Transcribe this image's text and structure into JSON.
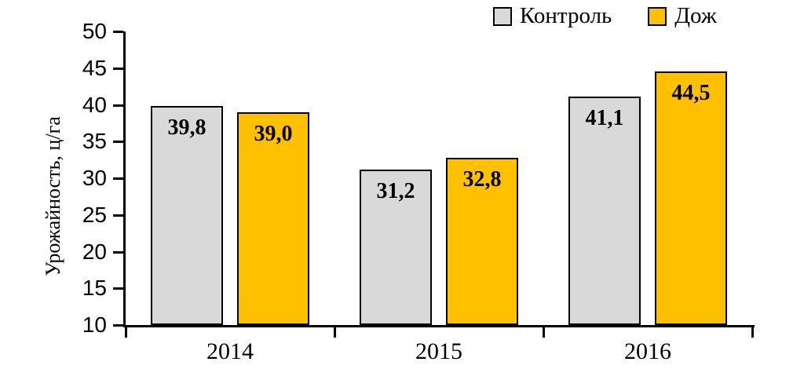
{
  "chart_data": {
    "type": "bar",
    "title": "",
    "categories": [
      "2014",
      "2015",
      "2016"
    ],
    "series": [
      {
        "name": "Контроль",
        "color": "#D9D9D9",
        "values": [
          39.8,
          31.2,
          41.1
        ],
        "labels": [
          "39,8",
          "31,2",
          "41,1"
        ]
      },
      {
        "name": "Дож",
        "color": "#FFC000",
        "values": [
          39.0,
          32.8,
          44.5
        ],
        "labels": [
          "39,0",
          "32,8",
          "44,5"
        ]
      }
    ],
    "xlabel": "",
    "ylabel": "Урожайность, ц/га",
    "ylim": [
      10,
      50
    ],
    "ytick_step": 5,
    "ytick_labels": [
      "10",
      "15",
      "20",
      "25",
      "30",
      "35",
      "40",
      "45",
      "50"
    ],
    "grid": false,
    "legend_position": "top-right",
    "bar_border_color": "#000000",
    "axis_color": "#000000",
    "label_color": "#000000",
    "background": "#FFFFFF",
    "decimal_separator": ","
  }
}
